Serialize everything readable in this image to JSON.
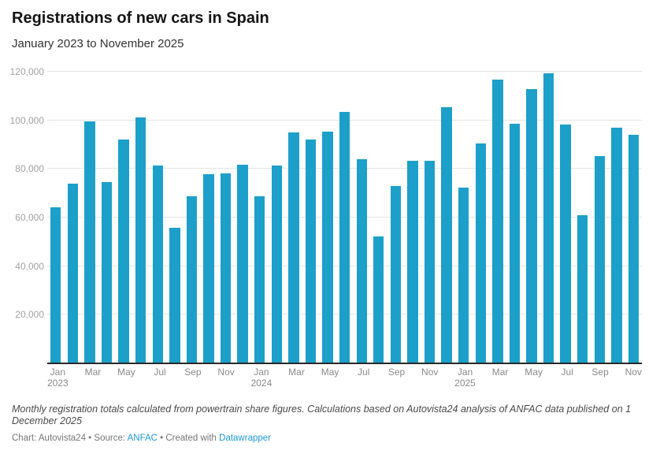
{
  "header": {
    "title": "Registrations of new cars in Spain",
    "subtitle": "January 2023 to November 2025"
  },
  "chart_data": {
    "type": "bar",
    "title": "Registrations of new cars in Spain",
    "subtitle": "January 2023 to November 2025",
    "xlabel": "",
    "ylabel": "",
    "ylim": [
      0,
      120000
    ],
    "grid": true,
    "legend": false,
    "categories": [
      "Jan 2023",
      "Feb 2023",
      "Mar 2023",
      "Apr 2023",
      "May 2023",
      "Jun 2023",
      "Jul 2023",
      "Aug 2023",
      "Sep 2023",
      "Oct 2023",
      "Nov 2023",
      "Dec 2023",
      "Jan 2024",
      "Feb 2024",
      "Mar 2024",
      "Apr 2024",
      "May 2024",
      "Jun 2024",
      "Jul 2024",
      "Aug 2024",
      "Sep 2024",
      "Oct 2024",
      "Nov 2024",
      "Dec 2024",
      "Jan 2025",
      "Feb 2025",
      "Mar 2025",
      "Apr 2025",
      "May 2025",
      "Jun 2025",
      "Jul 2025",
      "Aug 2025",
      "Sep 2025",
      "Oct 2025",
      "Nov 2025"
    ],
    "values": [
      64100,
      73900,
      99700,
      74700,
      92200,
      101200,
      81400,
      55800,
      68700,
      77900,
      78200,
      81600,
      68700,
      81400,
      95000,
      92100,
      95300,
      103400,
      83900,
      52300,
      72900,
      83300,
      83300,
      105400,
      72300,
      90400,
      116900,
      98600,
      113000,
      119500,
      98300,
      61000,
      85200,
      97000,
      94100
    ],
    "yticks": [
      {
        "value": 20000,
        "label": "20,000"
      },
      {
        "value": 40000,
        "label": "40,000"
      },
      {
        "value": 60000,
        "label": "60,000"
      },
      {
        "value": 80000,
        "label": "80,000"
      },
      {
        "value": 100000,
        "label": "100,000"
      },
      {
        "value": 120000,
        "label": "120,000"
      }
    ],
    "xticks": [
      {
        "index": 0,
        "month": "Jan",
        "year": "2023"
      },
      {
        "index": 2,
        "month": "Mar",
        "year": ""
      },
      {
        "index": 4,
        "month": "May",
        "year": ""
      },
      {
        "index": 6,
        "month": "Jul",
        "year": ""
      },
      {
        "index": 8,
        "month": "Sep",
        "year": ""
      },
      {
        "index": 10,
        "month": "Nov",
        "year": ""
      },
      {
        "index": 12,
        "month": "Jan",
        "year": "2024"
      },
      {
        "index": 14,
        "month": "Mar",
        "year": ""
      },
      {
        "index": 16,
        "month": "May",
        "year": ""
      },
      {
        "index": 18,
        "month": "Jul",
        "year": ""
      },
      {
        "index": 20,
        "month": "Sep",
        "year": ""
      },
      {
        "index": 22,
        "month": "Nov",
        "year": ""
      },
      {
        "index": 24,
        "month": "Jan",
        "year": "2025"
      },
      {
        "index": 26,
        "month": "Mar",
        "year": ""
      },
      {
        "index": 28,
        "month": "May",
        "year": ""
      },
      {
        "index": 30,
        "month": "Jul",
        "year": ""
      },
      {
        "index": 32,
        "month": "Sep",
        "year": ""
      },
      {
        "index": 34,
        "month": "Nov",
        "year": ""
      }
    ]
  },
  "colors": {
    "bar": "#1ca0c9",
    "gridline": "#e4e4e4",
    "axis": "#282828",
    "link": "#1e9ade"
  },
  "footer": {
    "note": "Monthly registration totals calculated from powertrain share figures. Calculations based on Autovista24 analysis of ANFAC data published on 1 December 2025",
    "byline_chart": "Chart: Autovista24",
    "separator1": " • ",
    "byline_source_label": "Source: ",
    "source_link": "ANFAC",
    "separator2": " • ",
    "byline_created_label": "Created with ",
    "created_link": "Datawrapper"
  }
}
